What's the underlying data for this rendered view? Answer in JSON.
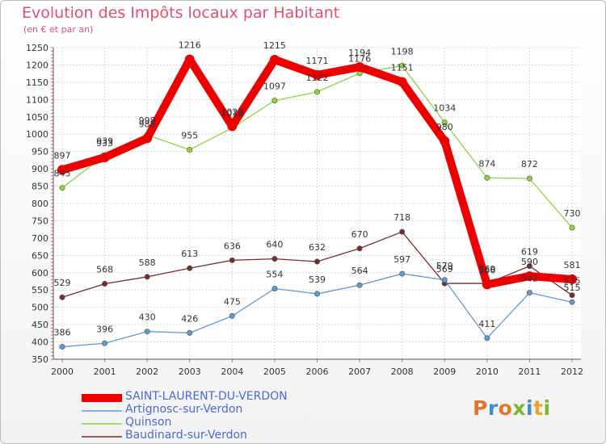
{
  "chart_data": {
    "type": "line",
    "title": "Evolution des Impôts locaux par Habitant",
    "subtitle": "(en € et par an)",
    "categories": [
      "2000",
      "2001",
      "2002",
      "2003",
      "2004",
      "2005",
      "2006",
      "2007",
      "2008",
      "2009",
      "2010",
      "2011",
      "2012"
    ],
    "ylim": [
      350,
      1250
    ],
    "yticks": [
      350,
      400,
      450,
      500,
      550,
      600,
      650,
      700,
      750,
      800,
      850,
      900,
      950,
      1000,
      1050,
      1100,
      1150,
      1200,
      1250
    ],
    "grid": true,
    "series": [
      {
        "name": "SAINT-LAURENT-DU-VERDON",
        "color": "#ee0000",
        "values": [
          897,
          933,
          988,
          1216,
          1023,
          1215,
          1171,
          1194,
          1151,
          980,
          566,
          590,
          581
        ]
      },
      {
        "name": "Artignosc-sur-Verdon",
        "color": "#5c9bd1",
        "values": [
          386,
          396,
          430,
          426,
          475,
          554,
          539,
          564,
          597,
          579,
          411,
          542,
          515
        ]
      },
      {
        "name": "Quinson",
        "color": "#8ed43f",
        "values": [
          845,
          939,
          998,
          955,
          1018,
          1097,
          1122,
          1176,
          1198,
          1034,
          874,
          872,
          730
        ]
      },
      {
        "name": "Baudinard-sur-Verdon",
        "color": "#7b2b2b",
        "values": [
          529,
          568,
          588,
          613,
          636,
          640,
          632,
          670,
          718,
          569,
          569,
          619,
          535
        ]
      }
    ]
  },
  "logo": {
    "text": "Proxiti",
    "colors": [
      "#e8742a",
      "#3b8fd6",
      "#e8742a",
      "#77b82f",
      "#3b8fd6",
      "#e8a52a",
      "#77b82f"
    ]
  }
}
